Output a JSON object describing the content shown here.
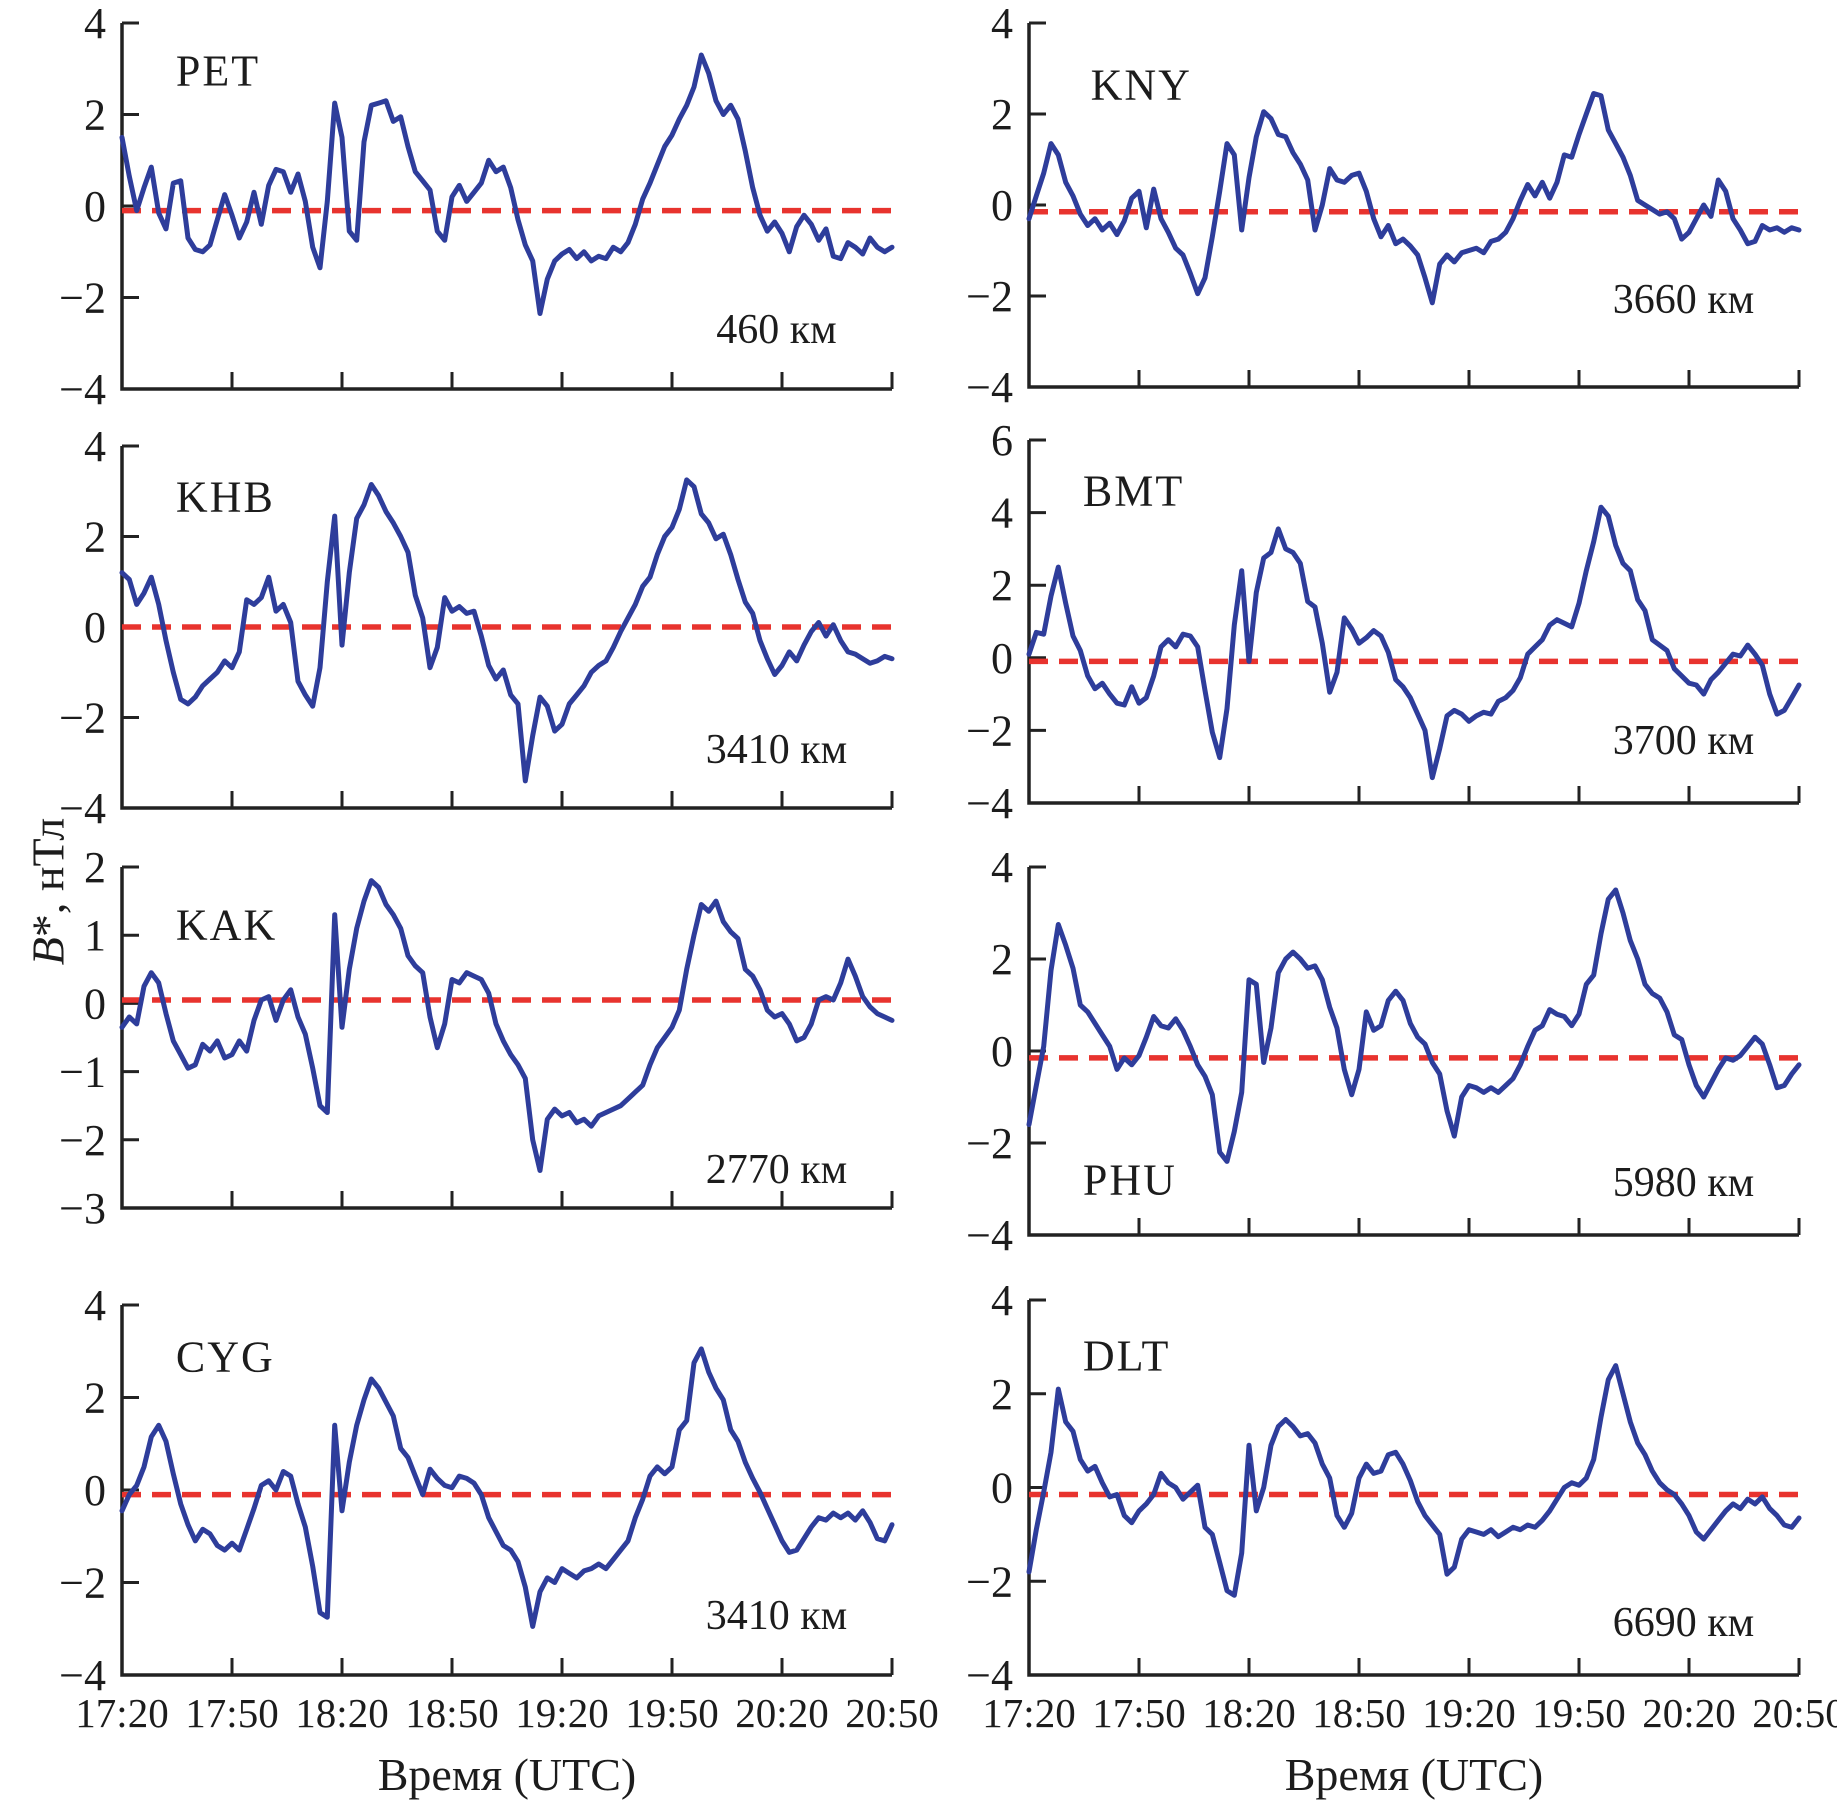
{
  "figure": {
    "xlabel": "Время (UTC)",
    "ylabel_italic": "B",
    "ylabel_rest": "*, нТл",
    "x_ticks": [
      "17:20",
      "17:50",
      "18:20",
      "18:50",
      "19:20",
      "19:50",
      "20:20",
      "20:50"
    ],
    "x_tick_interval_min": 30,
    "series_color": "#2e3d9b",
    "baseline_color": "#e8332e",
    "axis_color": "#222222"
  },
  "chart_data": [
    {
      "type": "line",
      "station": "PET",
      "distance": "460 км",
      "ylim": [
        -4,
        4
      ],
      "yticks": [
        4,
        2,
        0,
        -2,
        -4
      ],
      "baseline": -0.1,
      "x_start": "17:20",
      "x_end": "20:50",
      "x_step_min": 2,
      "values": [
        1.5,
        0.65,
        -0.1,
        0.4,
        0.85,
        -0.15,
        -0.5,
        0.5,
        0.55,
        -0.7,
        -0.95,
        -1.0,
        -0.85,
        -0.3,
        0.25,
        -0.2,
        -0.7,
        -0.35,
        0.3,
        -0.4,
        0.45,
        0.8,
        0.75,
        0.3,
        0.7,
        0.1,
        -0.9,
        -1.35,
        0.1,
        2.25,
        1.5,
        -0.55,
        -0.75,
        1.4,
        2.2,
        2.25,
        2.3,
        1.85,
        1.95,
        1.3,
        0.75,
        0.55,
        0.35,
        -0.55,
        -0.75,
        0.2,
        0.45,
        0.1,
        0.3,
        0.5,
        1.0,
        0.75,
        0.85,
        0.4,
        -0.3,
        -0.85,
        -1.2,
        -2.35,
        -1.6,
        -1.2,
        -1.05,
        -0.95,
        -1.15,
        -1.0,
        -1.2,
        -1.1,
        -1.15,
        -0.9,
        -1.0,
        -0.8,
        -0.4,
        0.15,
        0.5,
        0.9,
        1.3,
        1.55,
        1.9,
        2.2,
        2.6,
        3.3,
        2.9,
        2.3,
        2.0,
        2.2,
        1.9,
        1.2,
        0.4,
        -0.2,
        -0.55,
        -0.35,
        -0.6,
        -1.0,
        -0.45,
        -0.2,
        -0.4,
        -0.75,
        -0.5,
        -1.1,
        -1.15,
        -0.8,
        -0.9,
        -1.05,
        -0.7,
        -0.9,
        -1.0,
        -0.9
      ]
    },
    {
      "type": "line",
      "station": "KNY",
      "distance": "3660 км",
      "ylim": [
        -4,
        4
      ],
      "yticks": [
        4,
        2,
        0,
        -2,
        -4
      ],
      "baseline": -0.15,
      "x_start": "17:20",
      "x_end": "20:50",
      "x_step_min": 2,
      "values": [
        -0.3,
        0.2,
        0.7,
        1.35,
        1.1,
        0.5,
        0.2,
        -0.2,
        -0.45,
        -0.3,
        -0.55,
        -0.4,
        -0.65,
        -0.35,
        0.15,
        0.3,
        -0.5,
        0.35,
        -0.3,
        -0.6,
        -0.95,
        -1.1,
        -1.5,
        -1.95,
        -1.6,
        -0.7,
        0.3,
        1.35,
        1.1,
        -0.55,
        0.6,
        1.5,
        2.05,
        1.9,
        1.55,
        1.5,
        1.15,
        0.9,
        0.55,
        -0.55,
        0.0,
        0.8,
        0.55,
        0.5,
        0.65,
        0.7,
        0.3,
        -0.3,
        -0.7,
        -0.45,
        -0.85,
        -0.75,
        -0.9,
        -1.1,
        -1.6,
        -2.15,
        -1.3,
        -1.1,
        -1.25,
        -1.05,
        -1.0,
        -0.95,
        -1.05,
        -0.8,
        -0.75,
        -0.6,
        -0.3,
        0.1,
        0.45,
        0.2,
        0.5,
        0.15,
        0.5,
        1.1,
        1.05,
        1.55,
        2.0,
        2.45,
        2.4,
        1.65,
        1.35,
        1.05,
        0.65,
        0.1,
        0.0,
        -0.1,
        -0.2,
        -0.15,
        -0.3,
        -0.75,
        -0.6,
        -0.3,
        0.0,
        -0.25,
        0.55,
        0.3,
        -0.3,
        -0.55,
        -0.85,
        -0.8,
        -0.45,
        -0.55,
        -0.5,
        -0.6,
        -0.5,
        -0.55
      ]
    },
    {
      "type": "line",
      "station": "KHB",
      "distance": "3410 км",
      "ylim": [
        -4,
        4
      ],
      "yticks": [
        4,
        2,
        0,
        -2,
        -4
      ],
      "baseline": 0.0,
      "x_start": "17:20",
      "x_end": "20:50",
      "x_step_min": 2,
      "values": [
        1.2,
        1.05,
        0.5,
        0.75,
        1.1,
        0.5,
        -0.3,
        -1.0,
        -1.6,
        -1.7,
        -1.55,
        -1.3,
        -1.15,
        -1.0,
        -0.75,
        -0.9,
        -0.55,
        0.6,
        0.5,
        0.65,
        1.1,
        0.35,
        0.5,
        0.1,
        -1.2,
        -1.5,
        -1.75,
        -0.9,
        1.0,
        2.45,
        -0.4,
        1.2,
        2.4,
        2.7,
        3.15,
        2.9,
        2.55,
        2.3,
        2.0,
        1.65,
        0.7,
        0.2,
        -0.9,
        -0.45,
        0.65,
        0.35,
        0.45,
        0.3,
        0.35,
        -0.2,
        -0.85,
        -1.15,
        -0.95,
        -1.5,
        -1.7,
        -3.4,
        -2.4,
        -1.55,
        -1.75,
        -2.3,
        -2.15,
        -1.7,
        -1.5,
        -1.3,
        -1.0,
        -0.85,
        -0.75,
        -0.45,
        -0.1,
        0.2,
        0.5,
        0.9,
        1.1,
        1.6,
        2.0,
        2.2,
        2.6,
        3.25,
        3.1,
        2.5,
        2.3,
        1.95,
        2.05,
        1.6,
        1.05,
        0.55,
        0.3,
        -0.3,
        -0.7,
        -1.05,
        -0.85,
        -0.55,
        -0.75,
        -0.4,
        -0.1,
        0.1,
        -0.2,
        0.05,
        -0.3,
        -0.55,
        -0.6,
        -0.7,
        -0.8,
        -0.75,
        -0.65,
        -0.7
      ]
    },
    {
      "type": "line",
      "station": "BMT",
      "distance": "3700 км",
      "ylim": [
        -4,
        6
      ],
      "yticks": [
        6,
        4,
        2,
        0,
        -2,
        -4
      ],
      "baseline": -0.1,
      "x_start": "17:20",
      "x_end": "20:50",
      "x_step_min": 2,
      "values": [
        0.1,
        0.7,
        0.65,
        1.7,
        2.5,
        1.5,
        0.6,
        0.2,
        -0.5,
        -0.85,
        -0.7,
        -1.0,
        -1.25,
        -1.3,
        -0.8,
        -1.25,
        -1.1,
        -0.5,
        0.3,
        0.5,
        0.3,
        0.65,
        0.6,
        0.3,
        -0.9,
        -2.05,
        -2.75,
        -1.4,
        0.9,
        2.4,
        -0.1,
        1.8,
        2.75,
        2.9,
        3.55,
        3.0,
        2.9,
        2.6,
        1.55,
        1.4,
        0.4,
        -0.95,
        -0.4,
        1.1,
        0.8,
        0.4,
        0.55,
        0.75,
        0.6,
        0.15,
        -0.6,
        -0.8,
        -1.1,
        -1.55,
        -2.0,
        -3.3,
        -2.5,
        -1.6,
        -1.45,
        -1.55,
        -1.75,
        -1.6,
        -1.5,
        -1.55,
        -1.2,
        -1.1,
        -0.9,
        -0.55,
        0.1,
        0.3,
        0.5,
        0.9,
        1.05,
        0.95,
        0.85,
        1.5,
        2.4,
        3.2,
        4.15,
        3.9,
        3.1,
        2.6,
        2.4,
        1.6,
        1.3,
        0.5,
        0.35,
        0.2,
        -0.3,
        -0.5,
        -0.7,
        -0.75,
        -1.0,
        -0.6,
        -0.4,
        -0.15,
        0.1,
        0.05,
        0.35,
        0.1,
        -0.2,
        -1.0,
        -1.55,
        -1.45,
        -1.1,
        -0.75
      ]
    },
    {
      "type": "line",
      "station": "KAK",
      "distance": "2770 км",
      "ylim": [
        -3,
        2
      ],
      "yticks": [
        2,
        1,
        0,
        -1,
        -2,
        -3
      ],
      "baseline": 0.05,
      "x_start": "17:20",
      "x_end": "20:50",
      "x_step_min": 2,
      "values": [
        -0.35,
        -0.2,
        -0.3,
        0.25,
        0.45,
        0.3,
        -0.15,
        -0.55,
        -0.75,
        -0.95,
        -0.9,
        -0.6,
        -0.7,
        -0.55,
        -0.8,
        -0.75,
        -0.55,
        -0.7,
        -0.25,
        0.05,
        0.1,
        -0.25,
        0.05,
        0.2,
        -0.2,
        -0.45,
        -0.95,
        -1.5,
        -1.6,
        1.3,
        -0.35,
        0.5,
        1.1,
        1.5,
        1.8,
        1.7,
        1.45,
        1.3,
        1.1,
        0.7,
        0.55,
        0.45,
        -0.2,
        -0.65,
        -0.3,
        0.35,
        0.3,
        0.45,
        0.4,
        0.35,
        0.15,
        -0.3,
        -0.55,
        -0.75,
        -0.9,
        -1.1,
        -2.0,
        -2.45,
        -1.7,
        -1.55,
        -1.65,
        -1.6,
        -1.75,
        -1.7,
        -1.8,
        -1.65,
        -1.6,
        -1.55,
        -1.5,
        -1.4,
        -1.3,
        -1.2,
        -0.9,
        -0.65,
        -0.5,
        -0.35,
        -0.1,
        0.5,
        1.0,
        1.45,
        1.35,
        1.5,
        1.2,
        1.05,
        0.95,
        0.5,
        0.4,
        0.2,
        -0.1,
        -0.2,
        -0.15,
        -0.3,
        -0.55,
        -0.5,
        -0.3,
        0.05,
        0.1,
        0.05,
        0.3,
        0.65,
        0.4,
        0.1,
        -0.05,
        -0.15,
        -0.2,
        -0.25
      ]
    },
    {
      "type": "line",
      "station": "PHU",
      "distance": "5980 км",
      "ylim": [
        -4,
        4
      ],
      "yticks": [
        4,
        2,
        0,
        -2,
        -4
      ],
      "baseline": -0.15,
      "x_start": "17:20",
      "x_end": "20:50",
      "x_step_min": 2,
      "values": [
        -1.6,
        -0.75,
        0.1,
        1.75,
        2.75,
        2.3,
        1.8,
        1.0,
        0.85,
        0.6,
        0.35,
        0.1,
        -0.4,
        -0.15,
        -0.3,
        -0.1,
        0.3,
        0.75,
        0.55,
        0.5,
        0.7,
        0.45,
        0.1,
        -0.3,
        -0.55,
        -0.95,
        -2.2,
        -2.4,
        -1.75,
        -0.9,
        1.55,
        1.45,
        -0.25,
        0.5,
        1.7,
        2.0,
        2.15,
        2.0,
        1.8,
        1.85,
        1.55,
        0.95,
        0.5,
        -0.4,
        -0.95,
        -0.4,
        0.85,
        0.45,
        0.55,
        1.1,
        1.3,
        1.1,
        0.6,
        0.3,
        0.15,
        -0.25,
        -0.5,
        -1.3,
        -1.85,
        -1.0,
        -0.75,
        -0.8,
        -0.9,
        -0.8,
        -0.9,
        -0.75,
        -0.6,
        -0.3,
        0.1,
        0.45,
        0.55,
        0.9,
        0.8,
        0.75,
        0.55,
        0.8,
        1.45,
        1.65,
        2.55,
        3.3,
        3.5,
        3.0,
        2.4,
        2.0,
        1.45,
        1.25,
        1.15,
        0.85,
        0.35,
        0.25,
        -0.3,
        -0.75,
        -1.0,
        -0.7,
        -0.4,
        -0.15,
        -0.2,
        -0.1,
        0.1,
        0.3,
        0.15,
        -0.3,
        -0.8,
        -0.75,
        -0.5,
        -0.3
      ]
    },
    {
      "type": "line",
      "station": "CYG",
      "distance": "3410 км",
      "ylim": [
        -4,
        4
      ],
      "yticks": [
        4,
        2,
        0,
        -2,
        -4
      ],
      "baseline": -0.1,
      "x_start": "17:20",
      "x_end": "20:50",
      "x_step_min": 2,
      "values": [
        -0.45,
        -0.1,
        0.1,
        0.5,
        1.15,
        1.4,
        1.05,
        0.35,
        -0.3,
        -0.75,
        -1.1,
        -0.85,
        -0.95,
        -1.2,
        -1.3,
        -1.15,
        -1.3,
        -0.85,
        -0.4,
        0.1,
        0.2,
        0.0,
        0.4,
        0.3,
        -0.3,
        -0.8,
        -1.65,
        -2.65,
        -2.75,
        1.4,
        -0.45,
        0.6,
        1.4,
        1.95,
        2.4,
        2.2,
        1.9,
        1.6,
        0.9,
        0.7,
        0.3,
        -0.1,
        0.45,
        0.25,
        0.1,
        0.05,
        0.3,
        0.25,
        0.15,
        -0.1,
        -0.6,
        -0.9,
        -1.2,
        -1.3,
        -1.55,
        -2.1,
        -2.95,
        -2.2,
        -1.9,
        -2.0,
        -1.7,
        -1.8,
        -1.9,
        -1.75,
        -1.7,
        -1.6,
        -1.7,
        -1.5,
        -1.3,
        -1.1,
        -0.6,
        -0.2,
        0.3,
        0.5,
        0.35,
        0.5,
        1.3,
        1.5,
        2.75,
        3.05,
        2.55,
        2.2,
        1.95,
        1.3,
        1.05,
        0.6,
        0.25,
        -0.05,
        -0.4,
        -0.75,
        -1.1,
        -1.35,
        -1.3,
        -1.05,
        -0.8,
        -0.6,
        -0.65,
        -0.5,
        -0.6,
        -0.5,
        -0.65,
        -0.45,
        -0.7,
        -1.05,
        -1.1,
        -0.75
      ]
    },
    {
      "type": "line",
      "station": "DLT",
      "distance": "6690 км",
      "ylim": [
        -4,
        4
      ],
      "yticks": [
        4,
        2,
        0,
        -2,
        -4
      ],
      "baseline": -0.15,
      "x_start": "17:20",
      "x_end": "20:50",
      "x_step_min": 2,
      "values": [
        -1.8,
        -0.9,
        -0.1,
        0.75,
        2.1,
        1.4,
        1.2,
        0.6,
        0.35,
        0.45,
        0.1,
        -0.2,
        -0.15,
        -0.6,
        -0.75,
        -0.5,
        -0.35,
        -0.15,
        0.3,
        0.1,
        0.0,
        -0.25,
        -0.1,
        0.05,
        -0.85,
        -1.0,
        -1.6,
        -2.2,
        -2.3,
        -1.4,
        0.9,
        -0.5,
        0.0,
        0.9,
        1.3,
        1.45,
        1.3,
        1.1,
        1.15,
        0.95,
        0.5,
        0.2,
        -0.6,
        -0.85,
        -0.55,
        0.2,
        0.5,
        0.3,
        0.35,
        0.7,
        0.75,
        0.5,
        0.15,
        -0.3,
        -0.6,
        -0.8,
        -1.0,
        -1.85,
        -1.7,
        -1.1,
        -0.9,
        -0.95,
        -1.0,
        -0.9,
        -1.05,
        -0.95,
        -0.85,
        -0.9,
        -0.8,
        -0.85,
        -0.7,
        -0.5,
        -0.25,
        0.0,
        0.1,
        0.05,
        0.2,
        0.6,
        1.5,
        2.3,
        2.6,
        2.0,
        1.4,
        0.95,
        0.7,
        0.35,
        0.1,
        -0.05,
        -0.15,
        -0.35,
        -0.6,
        -0.95,
        -1.1,
        -0.9,
        -0.7,
        -0.5,
        -0.35,
        -0.45,
        -0.25,
        -0.35,
        -0.2,
        -0.45,
        -0.6,
        -0.8,
        -0.85,
        -0.65
      ]
    }
  ]
}
